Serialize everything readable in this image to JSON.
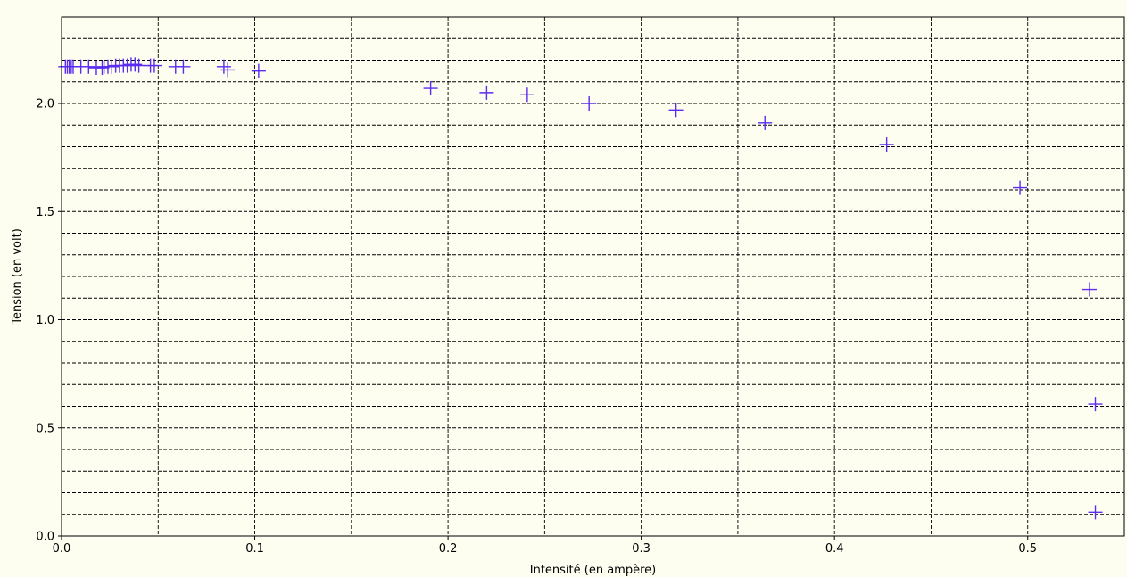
{
  "chart_data": {
    "type": "scatter",
    "title": "",
    "xlabel": "Intensité (en ampère)",
    "ylabel": "Tension (en volt)",
    "xlim": [
      0.0,
      0.55
    ],
    "ylim": [
      0.0,
      2.4
    ],
    "x_ticks": [
      0.0,
      0.1,
      0.2,
      0.3,
      0.4,
      0.5
    ],
    "x_tick_labels": [
      "0.0",
      "0.1",
      "0.2",
      "0.3",
      "0.4",
      "0.5"
    ],
    "y_ticks": [
      0.0,
      0.5,
      1.0,
      1.5,
      2.0
    ],
    "y_tick_labels": [
      "0.0",
      "0.5",
      "1.0",
      "1.5",
      "2.0"
    ],
    "x_grid_step": 0.05,
    "y_grid_step": 0.1,
    "grid": true,
    "grid_style": "dashed",
    "marker": "+",
    "marker_color": "#5b2bf0",
    "background_color": "#fdfdf0",
    "points": [
      {
        "x": 0.002,
        "y": 2.17
      },
      {
        "x": 0.003,
        "y": 2.17
      },
      {
        "x": 0.004,
        "y": 2.17
      },
      {
        "x": 0.005,
        "y": 2.17
      },
      {
        "x": 0.006,
        "y": 2.17
      },
      {
        "x": 0.01,
        "y": 2.17
      },
      {
        "x": 0.014,
        "y": 2.17
      },
      {
        "x": 0.018,
        "y": 2.165
      },
      {
        "x": 0.021,
        "y": 2.165
      },
      {
        "x": 0.022,
        "y": 2.17
      },
      {
        "x": 0.024,
        "y": 2.17
      },
      {
        "x": 0.026,
        "y": 2.17
      },
      {
        "x": 0.028,
        "y": 2.175
      },
      {
        "x": 0.03,
        "y": 2.175
      },
      {
        "x": 0.032,
        "y": 2.175
      },
      {
        "x": 0.034,
        "y": 2.175
      },
      {
        "x": 0.036,
        "y": 2.18
      },
      {
        "x": 0.038,
        "y": 2.18
      },
      {
        "x": 0.04,
        "y": 2.175
      },
      {
        "x": 0.046,
        "y": 2.175
      },
      {
        "x": 0.048,
        "y": 2.175
      },
      {
        "x": 0.059,
        "y": 2.17
      },
      {
        "x": 0.063,
        "y": 2.17
      },
      {
        "x": 0.084,
        "y": 2.17
      },
      {
        "x": 0.086,
        "y": 2.155
      },
      {
        "x": 0.102,
        "y": 2.15
      },
      {
        "x": 0.191,
        "y": 2.07
      },
      {
        "x": 0.22,
        "y": 2.05
      },
      {
        "x": 0.241,
        "y": 2.04
      },
      {
        "x": 0.273,
        "y": 2.0
      },
      {
        "x": 0.318,
        "y": 1.97
      },
      {
        "x": 0.364,
        "y": 1.91
      },
      {
        "x": 0.427,
        "y": 1.81
      },
      {
        "x": 0.496,
        "y": 1.61
      },
      {
        "x": 0.532,
        "y": 1.14
      },
      {
        "x": 0.535,
        "y": 0.61
      },
      {
        "x": 0.535,
        "y": 0.11
      }
    ]
  }
}
